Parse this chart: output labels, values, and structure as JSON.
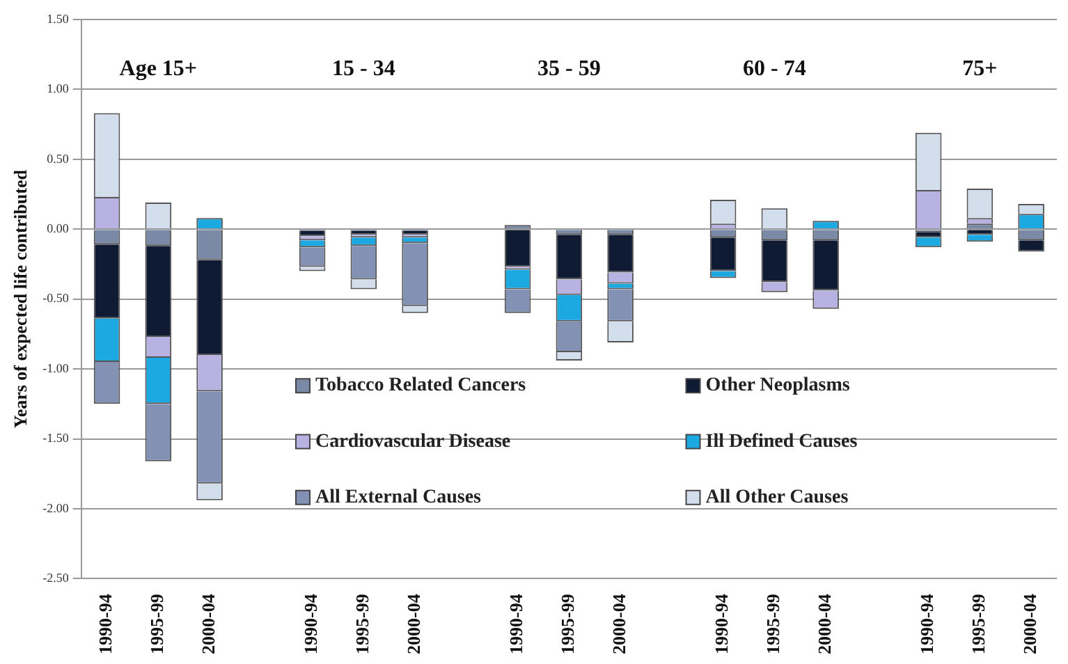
{
  "chart_data": {
    "type": "bar",
    "stacked": true,
    "ylabel": "Years of expected life contributed",
    "categories": [
      "1990-94",
      "1995-99",
      "2000-04",
      null,
      "1990-94",
      "1995-99",
      "2000-04",
      null,
      "1990-94",
      "1995-99",
      "2000-04",
      null,
      "1990-94",
      "1995-99",
      "2000-04",
      null,
      "1990-94",
      "1995-99",
      "2000-04"
    ],
    "series": [
      {
        "name": "Tobacco Related Cancers",
        "color": "#7a8aa6",
        "values": [
          -0.11,
          -0.12,
          -0.22,
          null,
          -0.01,
          -0.01,
          -0.01,
          null,
          0.03,
          -0.04,
          -0.04,
          null,
          -0.06,
          -0.08,
          -0.08,
          null,
          -0.02,
          0.04,
          -0.08
        ]
      },
      {
        "name": "Other Neoplasms",
        "color": "#0f1a33",
        "values": [
          -0.53,
          -0.65,
          -0.68,
          null,
          -0.04,
          -0.03,
          -0.03,
          null,
          -0.27,
          -0.32,
          -0.27,
          null,
          -0.24,
          -0.3,
          -0.36,
          null,
          -0.04,
          -0.04,
          -0.08
        ]
      },
      {
        "name": "Cardiovascular Disease",
        "color": "#b7b2e2",
        "values": [
          0.23,
          -0.15,
          -0.26,
          null,
          -0.03,
          -0.02,
          -0.02,
          null,
          -0.02,
          -0.11,
          -0.08,
          null,
          0.04,
          -0.07,
          -0.13,
          null,
          0.28,
          0.04,
          null
        ]
      },
      {
        "name": "Ill Defined Causes",
        "color": "#1ca9e2",
        "values": [
          -0.31,
          -0.33,
          0.08,
          null,
          -0.05,
          -0.06,
          -0.04,
          null,
          -0.14,
          -0.19,
          -0.04,
          null,
          -0.05,
          null,
          0.06,
          null,
          -0.07,
          -0.05,
          0.11
        ]
      },
      {
        "name": "All External Causes",
        "color": "#8392b4",
        "values": [
          -0.3,
          -0.41,
          -0.66,
          null,
          -0.14,
          -0.24,
          -0.45,
          null,
          -0.17,
          -0.22,
          -0.23,
          null,
          null,
          null,
          null,
          null,
          null,
          null,
          null
        ]
      },
      {
        "name": "All Other Causes",
        "color": "#d3deec",
        "values": [
          0.6,
          0.19,
          -0.12,
          null,
          -0.03,
          -0.07,
          -0.05,
          null,
          null,
          -0.06,
          -0.15,
          null,
          0.17,
          0.15,
          null,
          null,
          0.41,
          0.21,
          0.07
        ]
      }
    ],
    "ylim": [
      -2.5,
      1.5
    ],
    "yticks": [
      {
        "value": -2.5,
        "label": "-2.50"
      },
      {
        "value": -2,
        "label": "-2.00"
      },
      {
        "value": -1.5,
        "label": "-1.50"
      },
      {
        "value": -1,
        "label": "-1.00"
      },
      {
        "value": -0.5,
        "label": "-0.50"
      },
      {
        "value": 0,
        "label": "0.00"
      },
      {
        "value": 0.5,
        "label": "0.50"
      },
      {
        "value": 1,
        "label": "1.00"
      },
      {
        "value": 1.5,
        "label": "1.50"
      }
    ],
    "grid": "y",
    "legend": "bottom",
    "annotations": [
      "Age 15+",
      "15 - 34",
      "35 - 59",
      "60 - 74",
      "75+"
    ]
  }
}
